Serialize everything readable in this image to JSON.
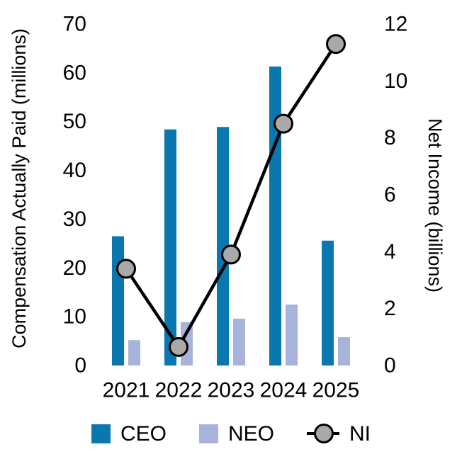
{
  "chart_data": {
    "type": "bar",
    "subtype": "combo-bar-line-dual-axis",
    "title": "",
    "categories": [
      "2021",
      "2022",
      "2023",
      "2024",
      "2025"
    ],
    "series": [
      {
        "name": "CEO",
        "type": "bar",
        "axis": "left",
        "color": "#0b77af",
        "values": [
          26.5,
          48.4,
          48.9,
          61.3,
          25.6
        ]
      },
      {
        "name": "NEO",
        "type": "bar",
        "axis": "left",
        "color": "#a8b3db",
        "values": [
          5.2,
          8.9,
          9.6,
          12.5,
          5.8
        ]
      },
      {
        "name": "NI",
        "type": "line",
        "axis": "right",
        "line_color": "#000000",
        "marker_fill": "#a9a9a9",
        "values": [
          3.4,
          0.65,
          3.9,
          8.5,
          11.3
        ]
      }
    ],
    "left_axis": {
      "label": "Compensation Actually Paid (millions)",
      "min": 0,
      "max": 70,
      "tick_step": 10,
      "ticks": [
        0,
        10,
        20,
        30,
        40,
        50,
        60,
        70
      ]
    },
    "right_axis": {
      "label": "Net Income (billions)",
      "min": 0,
      "max": 12,
      "tick_step": 2,
      "ticks": [
        0,
        2,
        4,
        6,
        8,
        10,
        12
      ]
    },
    "grid": false,
    "axis_lines": false,
    "legend_position": "bottom",
    "legend_entries": [
      "CEO",
      "NEO",
      "NI"
    ],
    "background_color": "#ffffff",
    "text_color": "#000000"
  }
}
